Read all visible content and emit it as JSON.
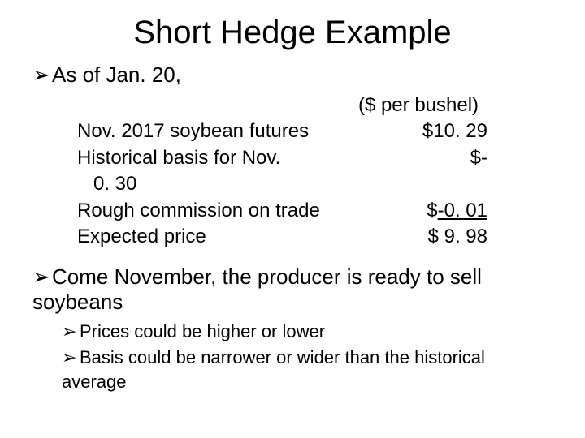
{
  "title": "Short Hedge Example",
  "bullets": {
    "first": "As of Jan. 20,",
    "second": "Come November, the producer is ready to sell soybeans",
    "sub1": "Prices could be higher or lower",
    "sub2": "Basis could be narrower or wider than the historical average"
  },
  "table": {
    "header": "($ per bushel)",
    "rows": {
      "r1_label": "Nov. 2017 soybean futures",
      "r1_value": "$10. 29",
      "r2_label": "Historical basis for Nov.",
      "r2_value": "$-",
      "r2_sub": "0. 30",
      "r3_label": "Rough commission on trade",
      "r3_value_prefix": "$",
      "r3_value_underline": "-0. 01",
      "r4_label": "Expected price",
      "r4_value": "$ 9. 98"
    }
  },
  "style": {
    "bg": "#ffffff",
    "text": "#000000",
    "title_fontsize": 40,
    "body_fontsize": 26,
    "table_fontsize": 24,
    "sub_fontsize": 22
  }
}
